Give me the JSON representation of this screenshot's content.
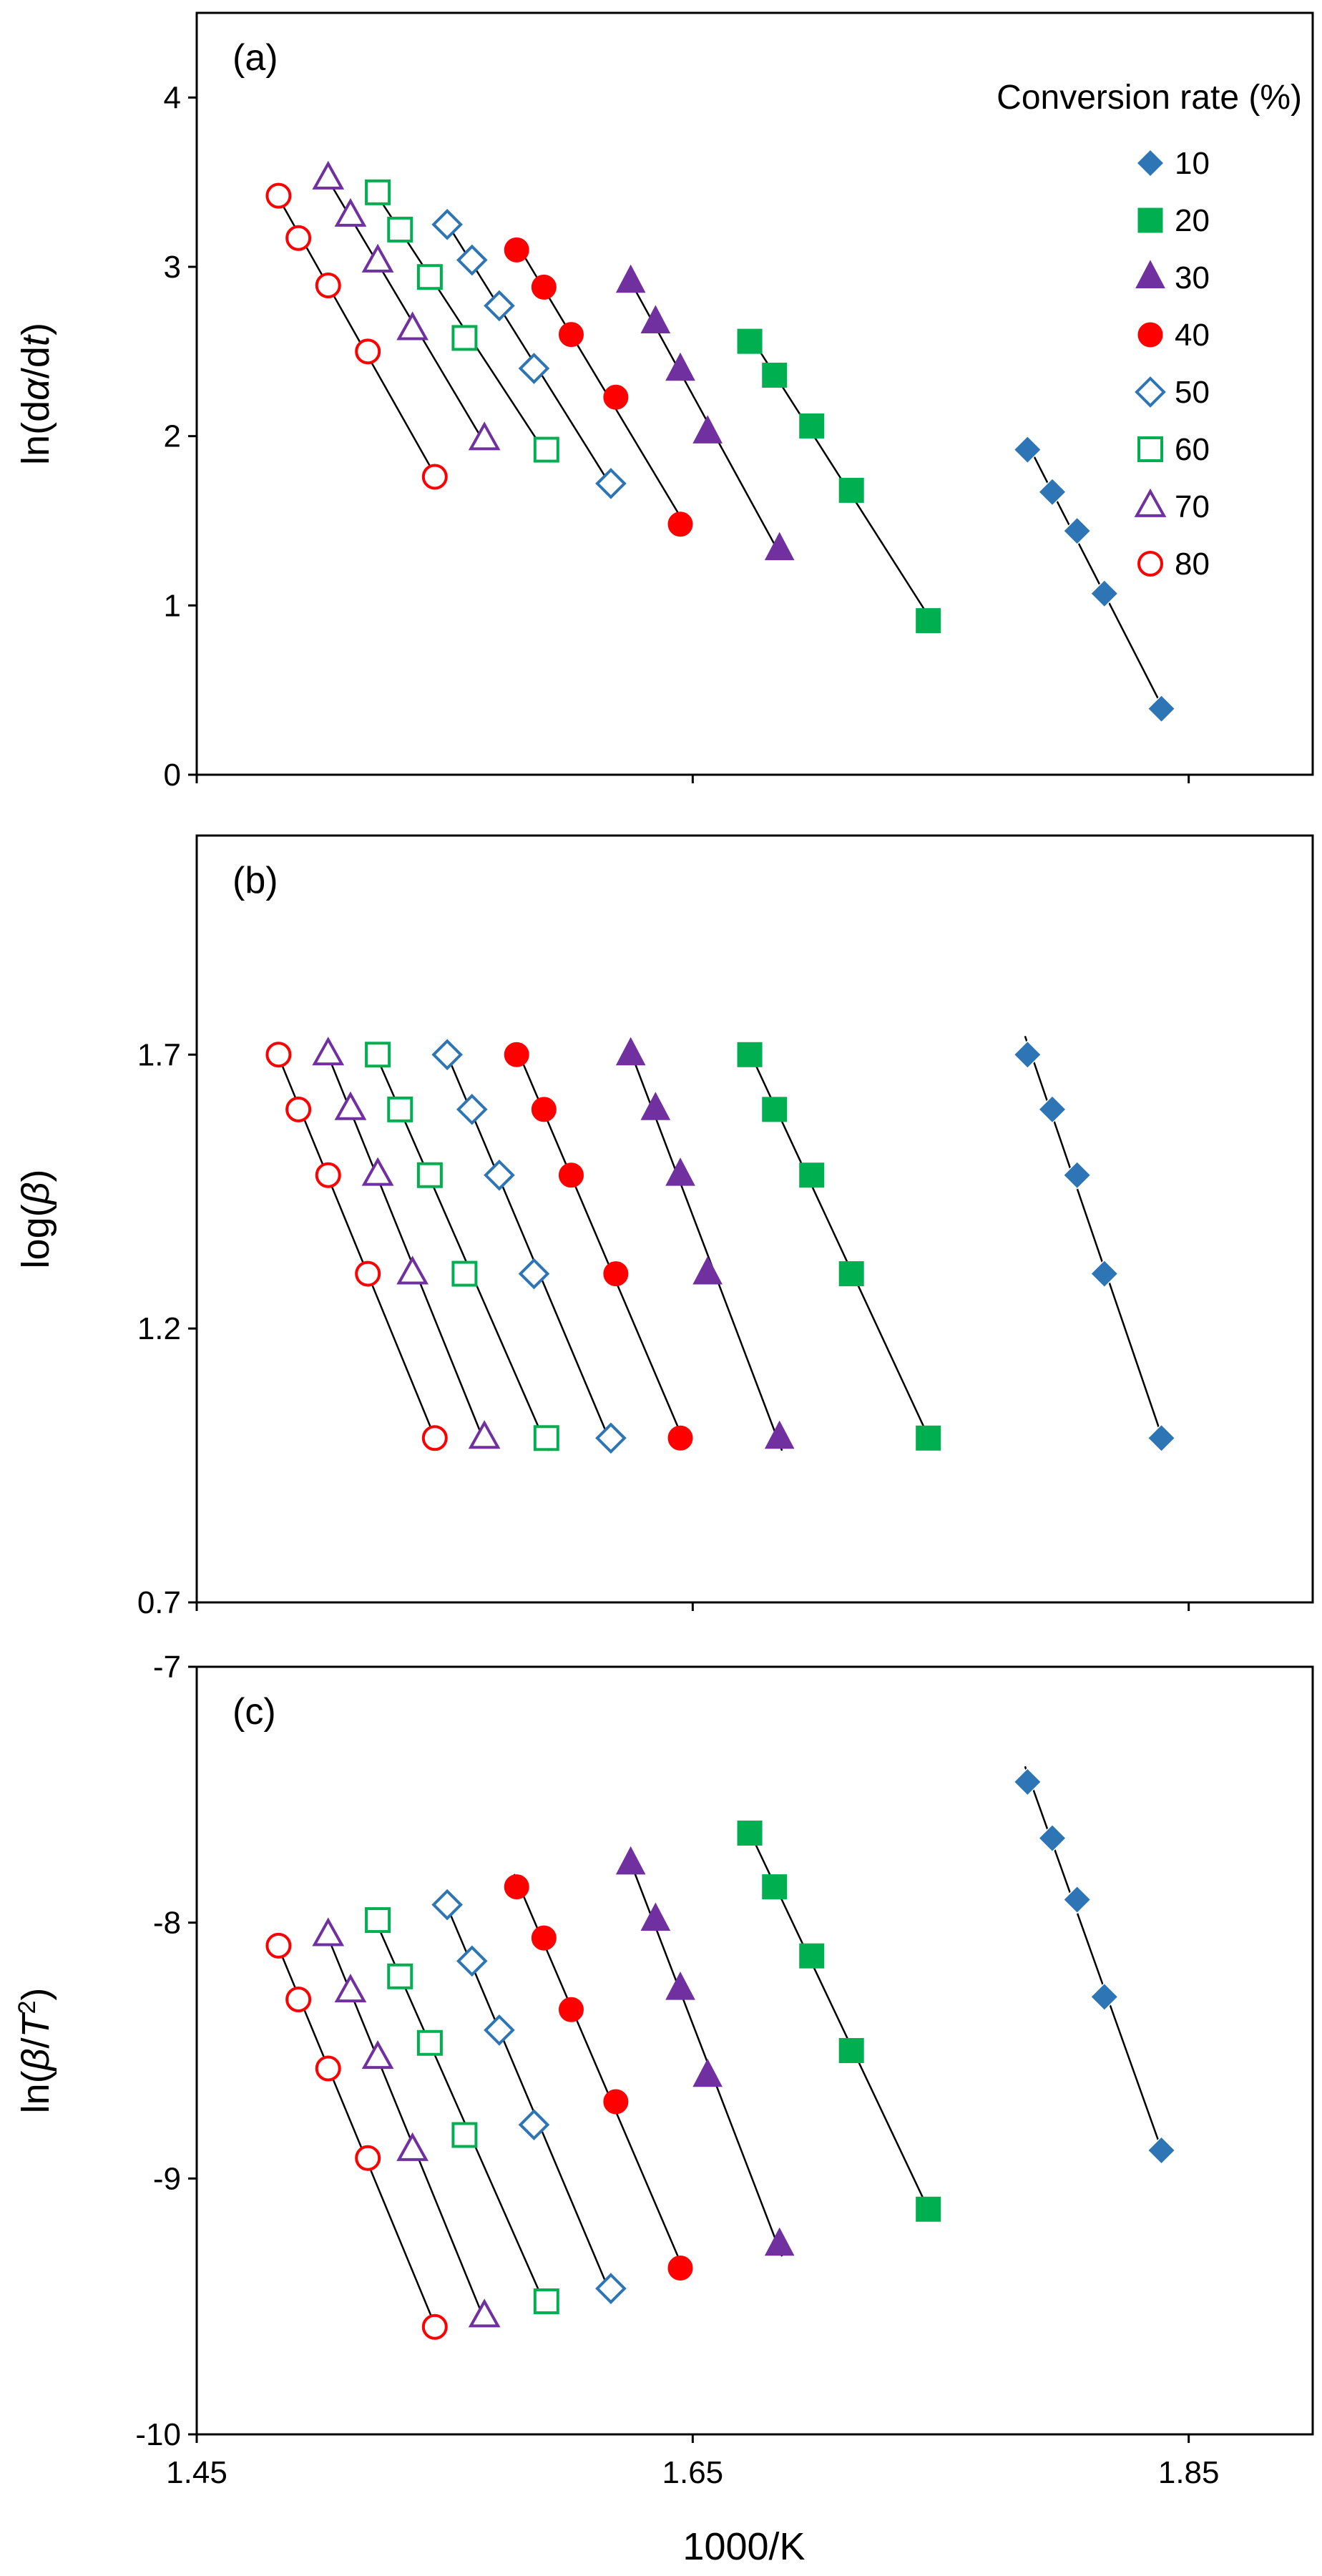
{
  "figure": {
    "xlabel": "1000/K",
    "legend": {
      "title": "Conversion rate (%)",
      "placement": "top-right of panel (a)",
      "entries": [
        {
          "label": "10",
          "color": "#2E75B6",
          "marker": "diamond",
          "filled": true
        },
        {
          "label": "20",
          "color": "#00B050",
          "marker": "square",
          "filled": true
        },
        {
          "label": "30",
          "color": "#7030A0",
          "marker": "triangle",
          "filled": true
        },
        {
          "label": "40",
          "color": "#FF0000",
          "marker": "circle",
          "filled": true
        },
        {
          "label": "50",
          "color": "#2E75B6",
          "marker": "diamond",
          "filled": false
        },
        {
          "label": "60",
          "color": "#00B050",
          "marker": "square",
          "filled": false
        },
        {
          "label": "70",
          "color": "#7030A0",
          "marker": "triangle",
          "filled": false
        },
        {
          "label": "80",
          "color": "#FF0000",
          "marker": "circle",
          "filled": false
        }
      ]
    }
  },
  "chart_data": [
    {
      "type": "scatter",
      "panel": "(a)",
      "ylabel_parts": [
        "ln(d",
        "α",
        "/d",
        "t",
        ")"
      ],
      "xlim": [
        1.45,
        1.9
      ],
      "ylim": [
        0,
        4.5
      ],
      "xticks": [
        "1.45",
        "1.65",
        "1.85"
      ],
      "xtick_values": [
        1.45,
        1.65,
        1.85
      ],
      "yticks": [
        "0",
        "1",
        "2",
        "3",
        "4"
      ],
      "ytick_values": [
        0,
        1,
        2,
        3,
        4
      ],
      "show_xtick_labels": false,
      "series": [
        {
          "name": "10",
          "x": [
            1.785,
            1.795,
            1.805,
            1.816,
            1.839
          ],
          "y": [
            1.92,
            1.67,
            1.44,
            1.07,
            0.39
          ]
        },
        {
          "name": "20",
          "x": [
            1.673,
            1.683,
            1.698,
            1.714,
            1.745
          ],
          "y": [
            2.56,
            2.36,
            2.06,
            1.68,
            0.91
          ]
        },
        {
          "name": "30",
          "x": [
            1.625,
            1.635,
            1.645,
            1.656,
            1.685
          ],
          "y": [
            2.91,
            2.67,
            2.39,
            2.02,
            1.33
          ]
        },
        {
          "name": "40",
          "x": [
            1.579,
            1.59,
            1.601,
            1.619,
            1.645
          ],
          "y": [
            3.1,
            2.88,
            2.6,
            2.23,
            1.48
          ]
        },
        {
          "name": "50",
          "x": [
            1.551,
            1.561,
            1.572,
            1.586,
            1.617
          ],
          "y": [
            3.25,
            3.04,
            2.77,
            2.4,
            1.72
          ]
        },
        {
          "name": "60",
          "x": [
            1.523,
            1.532,
            1.544,
            1.558,
            1.591
          ],
          "y": [
            3.44,
            3.22,
            2.94,
            2.58,
            1.92
          ]
        },
        {
          "name": "70",
          "x": [
            1.503,
            1.512,
            1.523,
            1.537,
            1.566
          ],
          "y": [
            3.52,
            3.3,
            3.03,
            2.63,
            1.98
          ]
        },
        {
          "name": "80",
          "x": [
            1.483,
            1.491,
            1.503,
            1.519,
            1.546
          ],
          "y": [
            3.42,
            3.17,
            2.89,
            2.5,
            1.76
          ]
        }
      ]
    },
    {
      "type": "scatter",
      "panel": "(b)",
      "ylabel_parts": [
        "log(",
        "β",
        ")"
      ],
      "xlim": [
        1.45,
        1.9
      ],
      "ylim": [
        0.7,
        2.1
      ],
      "xticks": [
        "1.45",
        "1.65",
        "1.85"
      ],
      "xtick_values": [
        1.45,
        1.65,
        1.85
      ],
      "yticks": [
        "0.7",
        "1.2",
        "1.7"
      ],
      "ytick_values": [
        0.7,
        1.2,
        1.7
      ],
      "show_xtick_labels": false,
      "series": [
        {
          "name": "10",
          "x": [
            1.785,
            1.795,
            1.805,
            1.816,
            1.839
          ],
          "y": [
            1.7,
            1.6,
            1.48,
            1.3,
            1.0
          ]
        },
        {
          "name": "20",
          "x": [
            1.673,
            1.683,
            1.698,
            1.714,
            1.745
          ],
          "y": [
            1.7,
            1.6,
            1.48,
            1.3,
            1.0
          ]
        },
        {
          "name": "30",
          "x": [
            1.625,
            1.635,
            1.645,
            1.656,
            1.685
          ],
          "y": [
            1.7,
            1.6,
            1.48,
            1.3,
            1.0
          ]
        },
        {
          "name": "40",
          "x": [
            1.579,
            1.59,
            1.601,
            1.619,
            1.645
          ],
          "y": [
            1.7,
            1.6,
            1.48,
            1.3,
            1.0
          ]
        },
        {
          "name": "50",
          "x": [
            1.551,
            1.561,
            1.572,
            1.586,
            1.617
          ],
          "y": [
            1.7,
            1.6,
            1.48,
            1.3,
            1.0
          ]
        },
        {
          "name": "60",
          "x": [
            1.523,
            1.532,
            1.544,
            1.558,
            1.591
          ],
          "y": [
            1.7,
            1.6,
            1.48,
            1.3,
            1.0
          ]
        },
        {
          "name": "70",
          "x": [
            1.503,
            1.512,
            1.523,
            1.537,
            1.566
          ],
          "y": [
            1.7,
            1.6,
            1.48,
            1.3,
            1.0
          ]
        },
        {
          "name": "80",
          "x": [
            1.483,
            1.491,
            1.503,
            1.519,
            1.546
          ],
          "y": [
            1.7,
            1.6,
            1.48,
            1.3,
            1.0
          ]
        }
      ]
    },
    {
      "type": "scatter",
      "panel": "(c)",
      "ylabel_parts": [
        "ln(",
        "β",
        "/",
        "T",
        "2",
        ")"
      ],
      "xlim": [
        1.45,
        1.9
      ],
      "ylim": [
        -10,
        -7
      ],
      "xticks": [
        "1.45",
        "1.65",
        "1.85"
      ],
      "xtick_values": [
        1.45,
        1.65,
        1.85
      ],
      "yticks": [
        "-10",
        "-9",
        "-8",
        "-7"
      ],
      "ytick_values": [
        -10,
        -9,
        -8,
        -7
      ],
      "show_xtick_labels": true,
      "series": [
        {
          "name": "10",
          "x": [
            1.785,
            1.795,
            1.805,
            1.816,
            1.839
          ],
          "y": [
            -7.45,
            -7.67,
            -7.91,
            -8.29,
            -8.89
          ]
        },
        {
          "name": "20",
          "x": [
            1.673,
            1.683,
            1.698,
            1.714,
            1.745
          ],
          "y": [
            -7.65,
            -7.86,
            -8.13,
            -8.5,
            -9.12
          ]
        },
        {
          "name": "30",
          "x": [
            1.625,
            1.635,
            1.645,
            1.656,
            1.685
          ],
          "y": [
            -7.77,
            -7.99,
            -8.26,
            -8.6,
            -9.26
          ]
        },
        {
          "name": "40",
          "x": [
            1.579,
            1.59,
            1.601,
            1.619,
            1.645
          ],
          "y": [
            -7.86,
            -8.06,
            -8.34,
            -8.7,
            -9.35
          ]
        },
        {
          "name": "50",
          "x": [
            1.551,
            1.561,
            1.572,
            1.586,
            1.617
          ],
          "y": [
            -7.93,
            -8.15,
            -8.42,
            -8.79,
            -9.43
          ]
        },
        {
          "name": "60",
          "x": [
            1.523,
            1.532,
            1.544,
            1.558,
            1.591
          ],
          "y": [
            -7.99,
            -8.21,
            -8.47,
            -8.83,
            -9.48
          ]
        },
        {
          "name": "70",
          "x": [
            1.503,
            1.512,
            1.523,
            1.537,
            1.566
          ],
          "y": [
            -8.05,
            -8.27,
            -8.53,
            -8.89,
            -9.54
          ]
        },
        {
          "name": "80",
          "x": [
            1.483,
            1.491,
            1.503,
            1.519,
            1.546
          ],
          "y": [
            -8.09,
            -8.3,
            -8.57,
            -8.92,
            -9.58
          ]
        }
      ]
    }
  ]
}
